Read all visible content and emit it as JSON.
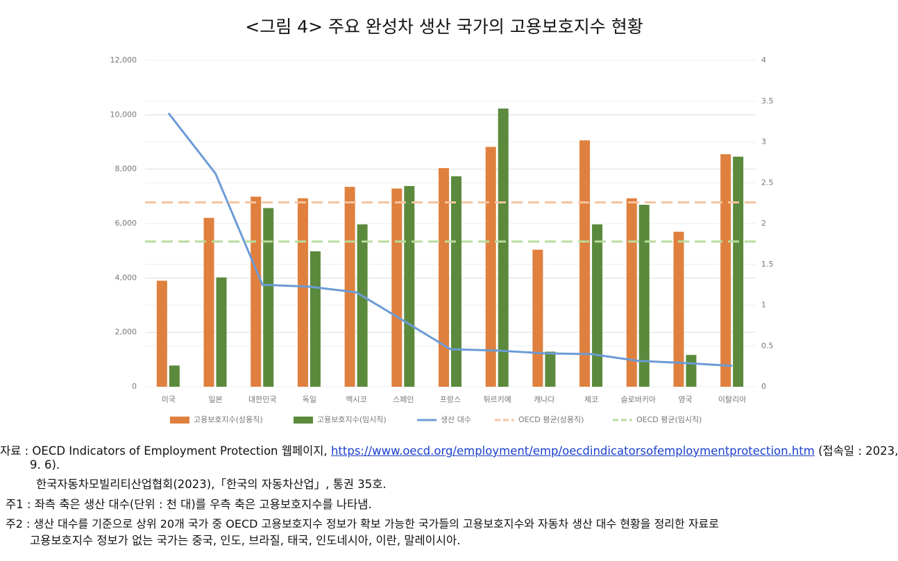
{
  "chart_data": {
    "type": "bar_line",
    "title": "<그림 4> 주요 완성차 생산 국가의 고용보호지수 현황",
    "categories": [
      "미국",
      "일본",
      "대한민국",
      "독일",
      "멕시코",
      "스페인",
      "프랑스",
      "튀르키예",
      "캐나다",
      "체코",
      "슬로바키아",
      "영국",
      "이탈리아"
    ],
    "series": [
      {
        "name": "고용보호지수(상용직)",
        "type": "bar",
        "color": "#e0803e",
        "axis": "y2",
        "values": [
          1.3,
          2.07,
          2.33,
          2.31,
          2.45,
          2.43,
          2.68,
          2.94,
          1.68,
          3.02,
          2.31,
          1.9,
          2.85
        ]
      },
      {
        "name": "고용보호지수(임시직)",
        "type": "bar",
        "color": "#5b8a3c",
        "axis": "y2",
        "values": [
          0.26,
          1.34,
          2.19,
          1.66,
          1.99,
          2.46,
          2.58,
          3.41,
          0.43,
          1.99,
          2.23,
          0.39,
          2.82
        ]
      },
      {
        "name": "생산 대수",
        "type": "line",
        "color": "#6b9bd6",
        "values": [
          10060,
          7840,
          3750,
          3680,
          3470,
          2430,
          1380,
          1330,
          1230,
          1200,
          950,
          870,
          770
        ]
      },
      {
        "name": "OECD 평균(상용직)",
        "type": "hline",
        "color": "#f5c4a0",
        "axis": "y2",
        "value": 2.26
      },
      {
        "name": "OECD 평균(임시직)",
        "type": "hline",
        "color": "#b9dc9e",
        "axis": "y2",
        "value": 1.78
      }
    ],
    "ylim": [
      0,
      12000
    ],
    "yticks": [
      0,
      {
        "value": 2000,
        "label": "2,000"
      },
      {
        "value": 4000,
        "label": "4,000"
      },
      {
        "value": 6000,
        "label": "6,000"
      },
      {
        "value": 8000,
        "label": "8,000"
      },
      {
        "value": 10000,
        "label": "10,000"
      },
      {
        "value": 12000,
        "label": "12,000"
      }
    ],
    "y2lim": [
      0,
      4
    ],
    "y2ticks": [
      0,
      0.5,
      1,
      1.5,
      2,
      2.5,
      3,
      3.5,
      4
    ],
    "grid": true
  },
  "notes": {
    "source_label": "자료 :",
    "source_text": "OECD Indicators of Employment Protection 웹페이지,",
    "source_url": "https://www.oecd.org/employment/emp/oecdindicatorsofemploymentprotection.htm",
    "source_access": [
      "(접속일 : 2023,",
      "9. 6)."
    ],
    "source_2": "한국자동차모빌리티산업협회(2023),「한국의 자동차산업」, 통권 35호.",
    "note1_label": "주1 :",
    "note1": "좌측 축은 생산 대수(단위 : 천 대)를 우측 축은 고용보호지수를 나타냄.",
    "note2_label": "주2 :",
    "note2": [
      "생산 대수를 기준으로 상위 20개 국가 중 OECD 고용보호지수 정보가 확보 가능한 국가들의 고용보호지수와 자동차 생산 대수 현황을 정리한 자료로",
      "고용보호지수 정보가 없는 국가는 중국, 인도, 브라질, 태국, 인도네시아, 이란, 말레이시아."
    ]
  }
}
